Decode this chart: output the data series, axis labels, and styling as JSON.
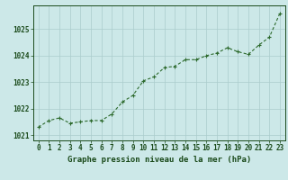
{
  "x": [
    0,
    1,
    2,
    3,
    4,
    5,
    6,
    7,
    8,
    9,
    10,
    11,
    12,
    13,
    14,
    15,
    16,
    17,
    18,
    19,
    20,
    21,
    22,
    23
  ],
  "y": [
    1021.3,
    1021.55,
    1021.65,
    1021.45,
    1021.5,
    1021.55,
    1021.55,
    1021.8,
    1022.25,
    1022.5,
    1023.05,
    1023.2,
    1023.55,
    1023.6,
    1023.85,
    1023.85,
    1024.0,
    1024.1,
    1024.3,
    1024.15,
    1024.05,
    1024.4,
    1024.7,
    1025.6
  ],
  "line_color": "#2d6a2d",
  "marker": "+",
  "marker_size": 3,
  "bg_color": "#cce8e8",
  "grid_color": "#aacccc",
  "yticks": [
    1021,
    1022,
    1023,
    1024,
    1025
  ],
  "xticks": [
    0,
    1,
    2,
    3,
    4,
    5,
    6,
    7,
    8,
    9,
    10,
    11,
    12,
    13,
    14,
    15,
    16,
    17,
    18,
    19,
    20,
    21,
    22,
    23
  ],
  "ylim": [
    1020.8,
    1025.9
  ],
  "xlim": [
    -0.5,
    23.5
  ],
  "xlabel": "Graphe pression niveau de la mer (hPa)",
  "xlabel_fontsize": 6.5,
  "tick_fontsize": 5.5,
  "tick_color": "#1a4a1a",
  "axis_color": "#1a4a1a",
  "linewidth": 0.8,
  "markeredgewidth": 0.8
}
